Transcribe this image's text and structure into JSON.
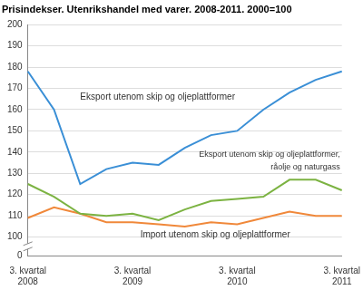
{
  "chart_data": {
    "type": "line",
    "title": "Prisindekser. Utenrikshandel med varer. 2008-2011. 2000=100",
    "categories": [
      "3. kvartal 2008",
      null,
      null,
      null,
      "3. kvartal 2009",
      null,
      null,
      null,
      "3. kvartal 2010",
      null,
      null,
      null,
      "3. kvartal 2011"
    ],
    "series": [
      {
        "name": "Eksport utenom skip og oljeplattformer",
        "color": "#3a8fd6",
        "values": [
          178,
          160,
          125,
          132,
          135,
          134,
          142,
          148,
          150,
          160,
          168,
          174,
          178
        ]
      },
      {
        "name": "Eksport utenom skip og oljeplattformer, råolje og naturgass",
        "color": "#7cb342",
        "values": [
          125,
          119,
          111,
          110,
          111,
          108,
          113,
          117,
          118,
          119,
          127,
          127,
          122
        ]
      },
      {
        "name": "Import utenom skip og oljeplattformer",
        "color": "#f0883a",
        "values": [
          109,
          114,
          111,
          107,
          107,
          106,
          105,
          107,
          106,
          109,
          112,
          110,
          110
        ]
      }
    ],
    "ylim": [
      0,
      200
    ],
    "yticks": [
      0,
      100,
      110,
      120,
      130,
      140,
      150,
      160,
      170,
      180,
      190,
      200
    ],
    "grid": true
  }
}
